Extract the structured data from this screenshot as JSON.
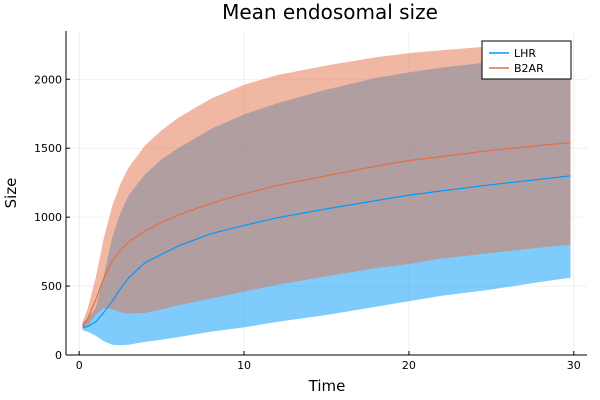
{
  "chart_data": {
    "type": "area",
    "title": "Mean endosomal size",
    "xlabel": "Time",
    "ylabel": "Size",
    "xlim": [
      -0.8,
      30.8
    ],
    "ylim": [
      0,
      2350
    ],
    "xticks": [
      0,
      10,
      20,
      30
    ],
    "yticks": [
      0,
      500,
      1000,
      1500,
      2000
    ],
    "grid": true,
    "legend_position": "top-right",
    "series": [
      {
        "name": "LHR",
        "color": "#009AFA",
        "band_opacity": 0.5,
        "x": [
          0.2,
          0.5,
          1,
          1.5,
          2,
          2.5,
          3,
          4,
          5,
          6,
          8,
          10,
          12,
          15,
          18,
          20,
          22,
          25,
          28,
          29.8
        ],
        "mean": [
          200,
          205,
          240,
          310,
          390,
          480,
          560,
          670,
          730,
          790,
          880,
          940,
          995,
          1060,
          1120,
          1160,
          1190,
          1235,
          1275,
          1300
        ],
        "lower": [
          180,
          170,
          140,
          100,
          75,
          70,
          75,
          95,
          110,
          130,
          170,
          200,
          240,
          290,
          350,
          390,
          430,
          475,
          530,
          560
        ],
        "upper": [
          230,
          265,
          340,
          580,
          850,
          1030,
          1160,
          1310,
          1420,
          1500,
          1640,
          1745,
          1825,
          1925,
          2010,
          2050,
          2085,
          2125,
          2160,
          2180
        ]
      },
      {
        "name": "B2AR",
        "color": "#E26F46",
        "band_opacity": 0.5,
        "x": [
          0.2,
          0.5,
          1,
          1.5,
          2,
          2.5,
          3,
          4,
          5,
          6,
          8,
          10,
          12,
          15,
          18,
          20,
          22,
          25,
          28,
          29.8
        ],
        "mean": [
          210,
          260,
          400,
          560,
          680,
          760,
          820,
          900,
          960,
          1015,
          1100,
          1170,
          1230,
          1300,
          1370,
          1410,
          1440,
          1485,
          1520,
          1540
        ],
        "lower": [
          190,
          210,
          290,
          340,
          330,
          310,
          300,
          305,
          330,
          360,
          410,
          460,
          510,
          570,
          630,
          660,
          700,
          740,
          780,
          800
        ],
        "upper": [
          240,
          330,
          560,
          850,
          1080,
          1240,
          1360,
          1520,
          1630,
          1720,
          1860,
          1960,
          2030,
          2100,
          2160,
          2190,
          2210,
          2240,
          2260,
          2280
        ]
      }
    ]
  }
}
